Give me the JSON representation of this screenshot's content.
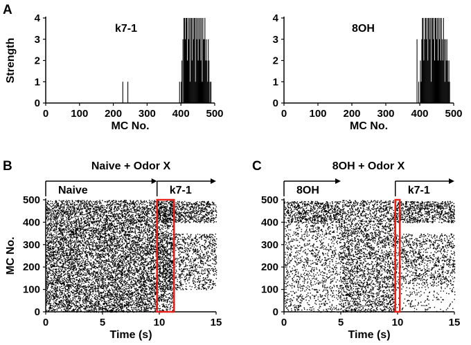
{
  "panels": {
    "A": {
      "letter": "A"
    },
    "B": {
      "letter": "B"
    },
    "C": {
      "letter": "C"
    }
  },
  "chart_data": [
    {
      "id": "A-left",
      "type": "bar",
      "annotation": "k7-1",
      "xlabel": "MC No.",
      "ylabel": "Strength",
      "xlim": [
        0,
        500
      ],
      "ylim": [
        0,
        4
      ],
      "xticks": [
        "0",
        "100",
        "200",
        "300",
        "400",
        "500"
      ],
      "yticks": [
        "0",
        "1",
        "2",
        "3",
        "4"
      ],
      "x": [
        228,
        243,
        396,
        401,
        403,
        406,
        409,
        411,
        413,
        415,
        417,
        419,
        421,
        423,
        425,
        427,
        429,
        431,
        433,
        435,
        437,
        439,
        441,
        443,
        445,
        447,
        449,
        451,
        453,
        455,
        457,
        459,
        461,
        463,
        465,
        467,
        469,
        471,
        473,
        475,
        477,
        479,
        481,
        483,
        486,
        489
      ],
      "values": [
        1,
        1,
        1,
        1,
        2,
        3,
        4,
        4,
        3,
        4,
        4,
        2,
        4,
        3,
        4,
        1,
        4,
        4,
        2,
        4,
        3,
        4,
        4,
        1,
        4,
        3,
        4,
        2,
        4,
        3,
        4,
        2,
        4,
        1,
        4,
        3,
        3,
        4,
        2,
        3,
        2,
        1,
        3,
        2,
        1,
        1
      ]
    },
    {
      "id": "A-right",
      "type": "bar",
      "annotation": "8OH",
      "xlabel": "MC No.",
      "ylabel": "",
      "xlim": [
        0,
        500
      ],
      "ylim": [
        0,
        4
      ],
      "xticks": [
        "0",
        "100",
        "200",
        "300",
        "400",
        "500"
      ],
      "yticks": [
        "0",
        "1",
        "2",
        "3",
        "4"
      ],
      "x": [
        392,
        397,
        402,
        404,
        406,
        408,
        410,
        412,
        414,
        416,
        418,
        420,
        422,
        424,
        426,
        428,
        430,
        432,
        434,
        436,
        438,
        440,
        442,
        444,
        446,
        448,
        450,
        452,
        454,
        456,
        458,
        460,
        462,
        464,
        466,
        468,
        470,
        472,
        474,
        476,
        478,
        480,
        482,
        484,
        486,
        488
      ],
      "values": [
        3,
        1,
        2,
        1,
        3,
        4,
        4,
        2,
        3,
        4,
        4,
        3,
        4,
        2,
        4,
        4,
        3,
        4,
        1,
        4,
        4,
        3,
        4,
        2,
        4,
        4,
        3,
        4,
        2,
        4,
        3,
        4,
        2,
        4,
        3,
        2,
        4,
        3,
        1,
        3,
        2,
        3,
        2,
        1,
        2,
        1
      ]
    },
    {
      "id": "B",
      "type": "scatter",
      "title": "Naive + Odor X",
      "xlabel": "Time (s)",
      "ylabel": "MC No.",
      "xlim": [
        0,
        15
      ],
      "ylim": [
        0,
        500
      ],
      "xticks": [
        "0",
        "5",
        "10",
        "15"
      ],
      "yticks": [
        "0",
        "100",
        "200",
        "300",
        "400",
        "500"
      ],
      "epochs": [
        {
          "label": "Naive",
          "start": 0,
          "end": 9.8
        },
        {
          "label": "k7-1",
          "start": 9.8,
          "end": 15
        }
      ],
      "highlight": {
        "x": [
          9.8,
          11.3
        ],
        "y": [
          0,
          500
        ],
        "color": "#e8201a"
      },
      "raster": [
        {
          "t": [
            0,
            9.8
          ],
          "mc": [
            0,
            500
          ],
          "rate": 1.0
        },
        {
          "t": [
            9.8,
            11.3
          ],
          "mc": [
            0,
            500
          ],
          "rate": 0.7
        },
        {
          "t": [
            9.8,
            15
          ],
          "mc": [
            400,
            495
          ],
          "rate": 0.95
        },
        {
          "t": [
            9.8,
            15
          ],
          "mc": [
            100,
            350
          ],
          "rate": 0.55
        }
      ]
    },
    {
      "id": "C",
      "type": "scatter",
      "title": "8OH + Odor X",
      "xlabel": "Time (s)",
      "ylabel": "",
      "xlim": [
        0,
        15
      ],
      "ylim": [
        0,
        500
      ],
      "xticks": [
        "0",
        "5",
        "10",
        "15"
      ],
      "yticks": [
        "0",
        "100",
        "200",
        "300",
        "400",
        "500"
      ],
      "epochs": [
        {
          "label": "8OH",
          "start": 0,
          "end": 5
        },
        {
          "label": "k7-1",
          "start": 9.8,
          "end": 15
        }
      ],
      "highlight": {
        "x": [
          9.8,
          10.2
        ],
        "y": [
          0,
          500
        ],
        "color": "#e8201a"
      },
      "raster": [
        {
          "t": [
            0,
            5
          ],
          "mc": [
            400,
            495
          ],
          "rate": 0.95
        },
        {
          "t": [
            0,
            5
          ],
          "mc": [
            0,
            400
          ],
          "rate": 0.35
        },
        {
          "t": [
            5,
            9.8
          ],
          "mc": [
            0,
            500
          ],
          "rate": 0.7
        },
        {
          "t": [
            9.8,
            15
          ],
          "mc": [
            400,
            495
          ],
          "rate": 0.95
        },
        {
          "t": [
            9.8,
            15
          ],
          "mc": [
            120,
            350
          ],
          "rate": 0.5
        },
        {
          "t": [
            9.8,
            15
          ],
          "mc": [
            0,
            120
          ],
          "rate": 0.15
        }
      ]
    }
  ]
}
